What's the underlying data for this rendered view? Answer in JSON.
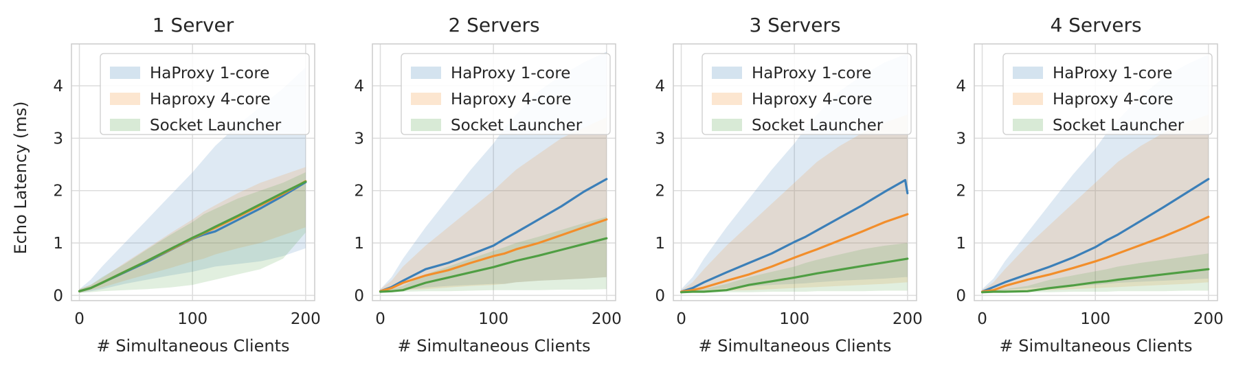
{
  "chart_data": [
    {
      "type": "line",
      "title": "1 Server",
      "xlabel": "# Simultaneous Clients",
      "ylabel": "Echo Latency (ms)",
      "xlim": [
        -7,
        208
      ],
      "ylim": [
        -0.1,
        4.8
      ],
      "xticks": [
        0,
        100,
        200
      ],
      "yticks": [
        0,
        1,
        2,
        3,
        4
      ],
      "grid": true,
      "legend": "top-right",
      "series": [
        {
          "name": "HaProxy 1-core",
          "color": "#3b7fb8",
          "x": [
            0,
            10,
            20,
            40,
            60,
            80,
            100,
            110,
            120,
            140,
            160,
            180,
            200
          ],
          "y": [
            0.08,
            0.14,
            0.24,
            0.44,
            0.64,
            0.86,
            1.08,
            1.16,
            1.22,
            1.44,
            1.66,
            1.9,
            2.16
          ],
          "band_low": [
            0.05,
            0.08,
            0.12,
            0.22,
            0.3,
            0.38,
            0.45,
            0.5,
            0.55,
            0.6,
            0.65,
            0.75,
            0.9
          ],
          "band_high": [
            0.12,
            0.3,
            0.55,
            1.0,
            1.45,
            1.9,
            2.35,
            2.6,
            2.85,
            3.25,
            3.6,
            3.95,
            4.35
          ]
        },
        {
          "name": "Haproxy 4-core",
          "color": "#f28e2b",
          "x": [
            0,
            10,
            20,
            40,
            60,
            80,
            100,
            110,
            120,
            140,
            160,
            180,
            200
          ],
          "y": [
            0.08,
            0.14,
            0.24,
            0.45,
            0.66,
            0.87,
            1.09,
            1.19,
            1.29,
            1.5,
            1.72,
            1.94,
            2.18
          ],
          "band_low": [
            0.05,
            0.1,
            0.15,
            0.28,
            0.4,
            0.52,
            0.65,
            0.7,
            0.78,
            0.9,
            1.0,
            1.15,
            1.3
          ],
          "band_high": [
            0.12,
            0.2,
            0.33,
            0.62,
            0.9,
            1.18,
            1.45,
            1.6,
            1.72,
            1.95,
            2.15,
            2.3,
            2.45
          ]
        },
        {
          "name": "Socket Launcher",
          "color": "#4f9e43",
          "x": [
            0,
            10,
            20,
            40,
            60,
            80,
            100,
            110,
            120,
            140,
            160,
            180,
            200
          ],
          "y": [
            0.08,
            0.14,
            0.24,
            0.45,
            0.66,
            0.88,
            1.1,
            1.2,
            1.31,
            1.52,
            1.74,
            1.96,
            2.17
          ],
          "band_low": [
            0.05,
            0.06,
            0.08,
            0.1,
            0.12,
            0.15,
            0.2,
            0.25,
            0.3,
            0.4,
            0.5,
            0.7,
            1.2
          ],
          "band_high": [
            0.12,
            0.2,
            0.35,
            0.6,
            0.88,
            1.15,
            1.4,
            1.55,
            1.65,
            1.85,
            2.0,
            2.15,
            2.35
          ]
        }
      ]
    },
    {
      "type": "line",
      "title": "2 Servers",
      "xlabel": "# Simultaneous Clients",
      "ylabel": "",
      "xlim": [
        -7,
        208
      ],
      "ylim": [
        -0.1,
        4.8
      ],
      "xticks": [
        0,
        100,
        200
      ],
      "yticks": [
        0,
        1,
        2,
        3,
        4
      ],
      "grid": true,
      "legend": "top-right",
      "series": [
        {
          "name": "HaProxy 1-core",
          "color": "#3b7fb8",
          "x": [
            0,
            10,
            20,
            40,
            60,
            80,
            100,
            110,
            120,
            140,
            160,
            180,
            200
          ],
          "y": [
            0.08,
            0.16,
            0.28,
            0.5,
            0.62,
            0.78,
            0.95,
            1.08,
            1.2,
            1.45,
            1.7,
            1.98,
            2.22
          ],
          "band_low": [
            0.05,
            0.08,
            0.1,
            0.15,
            0.18,
            0.2,
            0.22,
            0.22,
            0.25,
            0.28,
            0.3,
            0.32,
            0.35
          ],
          "band_high": [
            0.12,
            0.35,
            0.7,
            1.3,
            1.85,
            2.4,
            2.9,
            3.2,
            3.45,
            3.9,
            4.2,
            4.45,
            4.65
          ]
        },
        {
          "name": "Haproxy 4-core",
          "color": "#f28e2b",
          "x": [
            0,
            10,
            20,
            40,
            60,
            80,
            100,
            110,
            120,
            140,
            160,
            180,
            200
          ],
          "y": [
            0.08,
            0.14,
            0.24,
            0.38,
            0.48,
            0.62,
            0.75,
            0.8,
            0.88,
            1.0,
            1.15,
            1.3,
            1.45
          ],
          "band_low": [
            0.05,
            0.08,
            0.1,
            0.12,
            0.15,
            0.18,
            0.2,
            0.22,
            0.25,
            0.28,
            0.3,
            0.32,
            0.35
          ],
          "band_high": [
            0.12,
            0.28,
            0.55,
            0.95,
            1.3,
            1.65,
            2.0,
            2.2,
            2.4,
            2.7,
            3.0,
            3.2,
            3.4
          ]
        },
        {
          "name": "Socket Launcher",
          "color": "#4f9e43",
          "x": [
            0,
            10,
            20,
            40,
            60,
            80,
            100,
            110,
            120,
            140,
            160,
            180,
            200
          ],
          "y": [
            0.07,
            0.08,
            0.1,
            0.24,
            0.34,
            0.44,
            0.54,
            0.6,
            0.66,
            0.76,
            0.87,
            0.98,
            1.09
          ],
          "band_low": [
            0.05,
            0.06,
            0.07,
            0.08,
            0.08,
            0.09,
            0.1,
            0.1,
            0.1,
            0.1,
            0.11,
            0.11,
            0.12
          ],
          "band_high": [
            0.1,
            0.12,
            0.18,
            0.4,
            0.55,
            0.7,
            0.85,
            0.92,
            1.0,
            1.12,
            1.25,
            1.38,
            1.5
          ]
        }
      ]
    },
    {
      "type": "line",
      "title": "3 Servers",
      "xlabel": "# Simultaneous Clients",
      "ylabel": "",
      "xlim": [
        -7,
        208
      ],
      "ylim": [
        -0.1,
        4.8
      ],
      "xticks": [
        0,
        100,
        200
      ],
      "yticks": [
        0,
        1,
        2,
        3,
        4
      ],
      "grid": true,
      "legend": "top-right",
      "series": [
        {
          "name": "HaProxy 1-core",
          "color": "#3b7fb8",
          "x": [
            0,
            10,
            20,
            40,
            60,
            80,
            100,
            110,
            120,
            140,
            160,
            180,
            198,
            200
          ],
          "y": [
            0.07,
            0.14,
            0.25,
            0.44,
            0.62,
            0.8,
            1.02,
            1.12,
            1.24,
            1.48,
            1.72,
            1.98,
            2.2,
            1.95
          ],
          "band_low": [
            0.05,
            0.08,
            0.1,
            0.14,
            0.17,
            0.2,
            0.22,
            0.23,
            0.25,
            0.28,
            0.3,
            0.32,
            0.35,
            0.35
          ],
          "band_high": [
            0.12,
            0.35,
            0.7,
            1.3,
            1.85,
            2.4,
            2.9,
            3.2,
            3.45,
            3.9,
            4.2,
            4.45,
            4.6,
            4.6
          ]
        },
        {
          "name": "Haproxy 4-core",
          "color": "#f28e2b",
          "x": [
            0,
            10,
            20,
            40,
            60,
            80,
            100,
            110,
            120,
            140,
            160,
            180,
            200
          ],
          "y": [
            0.07,
            0.1,
            0.15,
            0.28,
            0.4,
            0.55,
            0.72,
            0.8,
            0.88,
            1.05,
            1.22,
            1.4,
            1.55
          ],
          "band_low": [
            0.05,
            0.06,
            0.07,
            0.09,
            0.1,
            0.12,
            0.14,
            0.15,
            0.16,
            0.18,
            0.2,
            0.22,
            0.25
          ],
          "band_high": [
            0.1,
            0.25,
            0.5,
            0.95,
            1.35,
            1.75,
            2.15,
            2.35,
            2.55,
            2.85,
            3.1,
            3.3,
            3.45
          ]
        },
        {
          "name": "Socket Launcher",
          "color": "#4f9e43",
          "x": [
            0,
            10,
            20,
            40,
            60,
            80,
            100,
            110,
            120,
            140,
            160,
            180,
            200
          ],
          "y": [
            0.06,
            0.07,
            0.07,
            0.1,
            0.2,
            0.27,
            0.34,
            0.38,
            0.42,
            0.49,
            0.56,
            0.63,
            0.7
          ],
          "band_low": [
            0.05,
            0.05,
            0.05,
            0.06,
            0.06,
            0.07,
            0.07,
            0.07,
            0.08,
            0.08,
            0.08,
            0.09,
            0.09
          ],
          "band_high": [
            0.08,
            0.1,
            0.12,
            0.22,
            0.35,
            0.45,
            0.55,
            0.62,
            0.68,
            0.78,
            0.88,
            0.95,
            1.0
          ]
        }
      ]
    },
    {
      "type": "line",
      "title": "4 Servers",
      "xlabel": "# Simultaneous Clients",
      "ylabel": "",
      "xlim": [
        -7,
        208
      ],
      "ylim": [
        -0.1,
        4.8
      ],
      "xticks": [
        0,
        100,
        200
      ],
      "yticks": [
        0,
        1,
        2,
        3,
        4
      ],
      "grid": true,
      "legend": "top-right",
      "series": [
        {
          "name": "HaProxy 1-core",
          "color": "#3b7fb8",
          "x": [
            0,
            10,
            20,
            40,
            60,
            80,
            100,
            110,
            120,
            140,
            160,
            180,
            200
          ],
          "y": [
            0.07,
            0.16,
            0.25,
            0.4,
            0.55,
            0.72,
            0.92,
            1.05,
            1.16,
            1.42,
            1.68,
            1.95,
            2.22
          ],
          "band_low": [
            0.05,
            0.08,
            0.1,
            0.14,
            0.16,
            0.18,
            0.2,
            0.22,
            0.24,
            0.26,
            0.28,
            0.3,
            0.32
          ],
          "band_high": [
            0.12,
            0.32,
            0.65,
            1.2,
            1.75,
            2.3,
            2.8,
            3.1,
            3.35,
            3.8,
            4.15,
            4.4,
            4.6
          ]
        },
        {
          "name": "Haproxy 4-core",
          "color": "#f28e2b",
          "x": [
            0,
            10,
            20,
            40,
            60,
            80,
            100,
            110,
            120,
            140,
            160,
            180,
            200
          ],
          "y": [
            0.07,
            0.1,
            0.18,
            0.3,
            0.4,
            0.52,
            0.65,
            0.72,
            0.8,
            0.96,
            1.12,
            1.3,
            1.5
          ],
          "band_low": [
            0.05,
            0.06,
            0.07,
            0.09,
            0.1,
            0.12,
            0.14,
            0.15,
            0.16,
            0.18,
            0.2,
            0.22,
            0.25
          ],
          "band_high": [
            0.1,
            0.25,
            0.5,
            0.95,
            1.35,
            1.75,
            2.15,
            2.35,
            2.55,
            2.85,
            3.1,
            3.3,
            3.45
          ]
        },
        {
          "name": "Socket Launcher",
          "color": "#4f9e43",
          "x": [
            0,
            10,
            20,
            40,
            60,
            80,
            100,
            110,
            120,
            140,
            160,
            180,
            200
          ],
          "y": [
            0.06,
            0.07,
            0.07,
            0.08,
            0.14,
            0.19,
            0.25,
            0.27,
            0.3,
            0.35,
            0.4,
            0.45,
            0.5
          ],
          "band_low": [
            0.05,
            0.05,
            0.05,
            0.06,
            0.06,
            0.07,
            0.07,
            0.07,
            0.08,
            0.08,
            0.08,
            0.09,
            0.09
          ],
          "band_high": [
            0.08,
            0.1,
            0.12,
            0.18,
            0.3,
            0.38,
            0.46,
            0.5,
            0.55,
            0.62,
            0.68,
            0.74,
            0.8
          ]
        }
      ]
    }
  ]
}
